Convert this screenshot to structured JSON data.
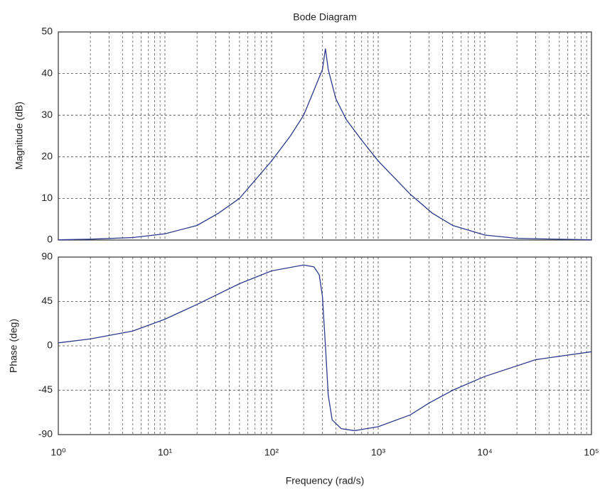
{
  "chart_data": [
    {
      "type": "line",
      "title": "Bode Diagram",
      "ylabel": "Magnitude (dB)",
      "xscale": "log",
      "grid": true,
      "xlim": [
        1,
        100000
      ],
      "xticks": [
        1,
        10,
        100,
        1000,
        10000,
        100000
      ],
      "ylim": [
        0,
        50
      ],
      "yticks": [
        0,
        10,
        20,
        30,
        40,
        50
      ],
      "x": [
        1,
        2,
        5,
        10,
        20,
        32,
        50,
        100,
        150,
        200,
        250,
        300,
        320,
        340,
        400,
        500,
        700,
        1000,
        2000,
        3200,
        5000,
        10000,
        20000,
        100000
      ],
      "series": [
        {
          "color": "#2b3a8c",
          "values": [
            0.05,
            0.2,
            0.6,
            1.5,
            3.5,
            6.5,
            10,
            19,
            25,
            30,
            36,
            41,
            46,
            41,
            34,
            29,
            24,
            19,
            11,
            6.5,
            3.5,
            1.2,
            0.4,
            0.05
          ]
        }
      ]
    },
    {
      "type": "line",
      "ylabel": "Phase (deg)",
      "xlabel": "Frequency  (rad/s)",
      "xscale": "log",
      "grid": true,
      "xlim": [
        1,
        100000
      ],
      "xticks": [
        {
          "value": 1,
          "label": "10⁰"
        },
        {
          "value": 10,
          "label": "10¹"
        },
        {
          "value": 100,
          "label": "10²"
        },
        {
          "value": 1000,
          "label": "10³"
        },
        {
          "value": 10000,
          "label": "10⁴"
        },
        {
          "value": 100000,
          "label": "10⁵"
        }
      ],
      "ylim": [
        -90,
        90
      ],
      "yticks": [
        -90,
        -45,
        0,
        45,
        90
      ],
      "x": [
        1,
        2,
        5,
        10,
        20,
        50,
        100,
        200,
        250,
        280,
        300,
        320,
        340,
        370,
        450,
        600,
        1000,
        2000,
        3000,
        5000,
        10000,
        30000,
        100000
      ],
      "series": [
        {
          "color": "#2b3a8c",
          "values": [
            3,
            7,
            15,
            27,
            42,
            63,
            76,
            82,
            80,
            72,
            50,
            0,
            -50,
            -75,
            -84,
            -86,
            -82,
            -70,
            -58,
            -45,
            -31,
            -14,
            -6
          ]
        }
      ]
    }
  ]
}
